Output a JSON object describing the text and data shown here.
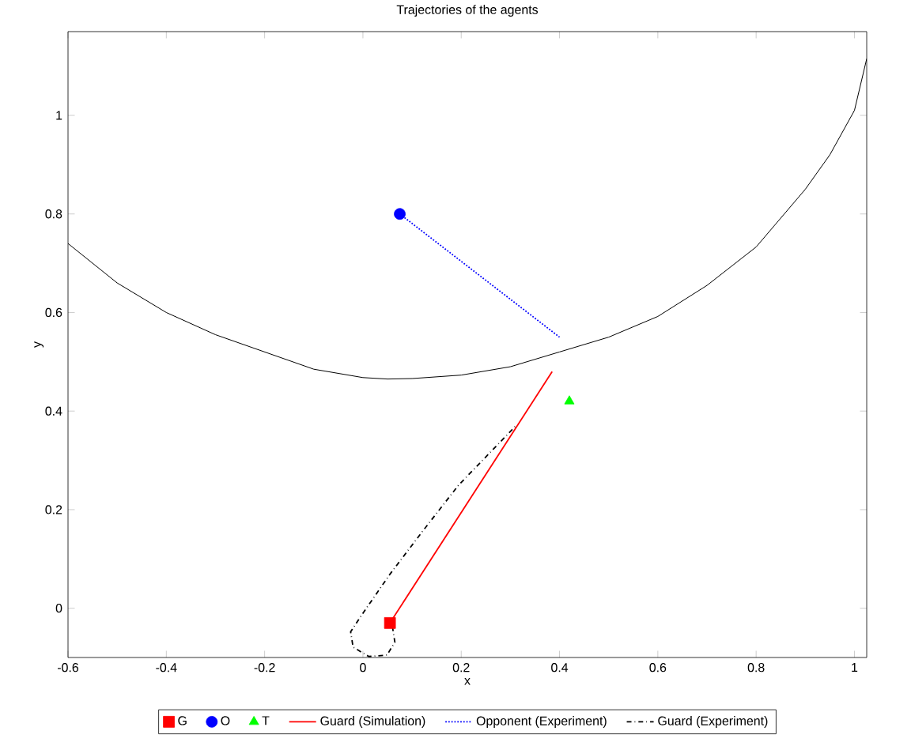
{
  "chart_data": {
    "type": "line",
    "title": "Trajectories of the agents",
    "xlabel": "x",
    "ylabel": "y",
    "xlim": [
      -0.6,
      1.025
    ],
    "ylim": [
      -0.1,
      1.17
    ],
    "xticks": [
      -0.6,
      -0.4,
      -0.2,
      0,
      0.2,
      0.4,
      0.6,
      0.8,
      1
    ],
    "yticks": [
      0,
      0.2,
      0.4,
      0.6,
      0.8,
      1
    ],
    "grid": false,
    "legend": "bottom",
    "series": [
      {
        "name": "G",
        "type": "scatter",
        "marker": "square",
        "color": "#ff0000",
        "x": [
          0.055
        ],
        "values": [
          -0.03
        ]
      },
      {
        "name": "O",
        "type": "scatter",
        "marker": "circle",
        "color": "#0000ff",
        "x": [
          0.075
        ],
        "values": [
          0.8
        ]
      },
      {
        "name": "T",
        "type": "scatter",
        "marker": "triangle",
        "color": "#00ff00",
        "x": [
          0.42
        ],
        "values": [
          0.42
        ]
      },
      {
        "name": "Guard (Simulation)",
        "line_style": "solid",
        "color": "#ff0000",
        "x": [
          0.055,
          0.385
        ],
        "values": [
          -0.03,
          0.48
        ]
      },
      {
        "name": "Opponent (Experiment)",
        "line_style": "dotted",
        "color": "#0000ff",
        "x": [
          0.075,
          0.4
        ],
        "values": [
          0.8,
          0.55
        ]
      },
      {
        "name": "Guard (Experiment)",
        "line_style": "dashdot",
        "color": "#000000",
        "x": [
          0.06,
          0.065,
          0.049,
          0.012,
          -0.02,
          -0.025,
          -0.004,
          0.055,
          0.119,
          0.194,
          0.311
        ],
        "values": [
          -0.037,
          -0.069,
          -0.095,
          -0.098,
          -0.079,
          -0.048,
          -0.016,
          0.069,
          0.153,
          0.249,
          0.37
        ]
      },
      {
        "line_style": "solid",
        "color": "#000000",
        "x": [
          -0.6,
          -0.5,
          -0.4,
          -0.3,
          -0.2,
          -0.1,
          0,
          0.05,
          0.1,
          0.2,
          0.3,
          0.4,
          0.5,
          0.6,
          0.7,
          0.8,
          0.9,
          0.95,
          1.0,
          1.025
        ],
        "values": [
          0.74,
          0.66,
          0.6,
          0.555,
          0.52,
          0.485,
          0.468,
          0.465,
          0.466,
          0.473,
          0.49,
          0.52,
          0.55,
          0.592,
          0.655,
          0.733,
          0.85,
          0.92,
          1.01,
          1.115
        ]
      }
    ]
  }
}
